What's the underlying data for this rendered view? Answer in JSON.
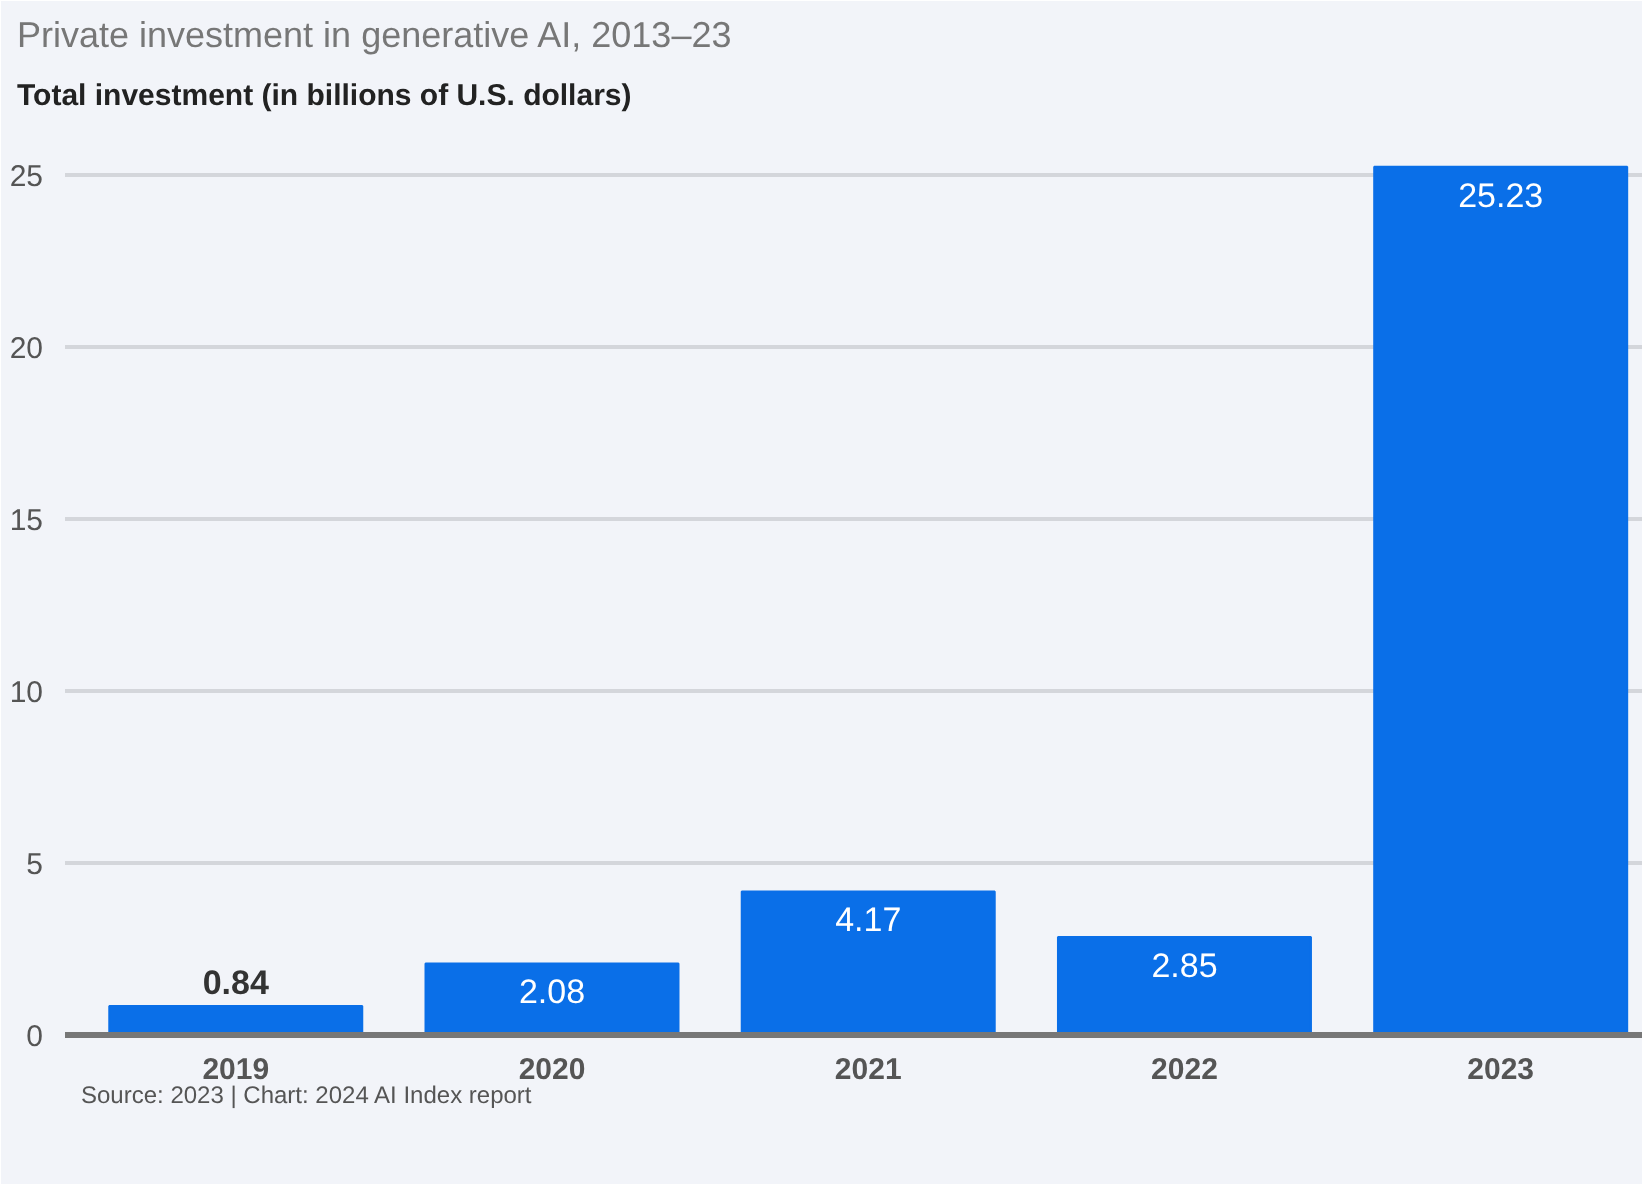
{
  "chart_data": {
    "type": "bar",
    "title": "Private investment in generative AI, 2013–23",
    "ylabel": "Total investment (in billions of U.S. dollars)",
    "categories": [
      "2019",
      "2020",
      "2021",
      "2022",
      "2023"
    ],
    "values": [
      0.84,
      2.08,
      4.17,
      2.85,
      25.23
    ],
    "color": "#0a6fe8",
    "ylim": [
      0,
      26.5
    ],
    "yticks": [
      0,
      5,
      10,
      15,
      20,
      25
    ],
    "grid": "y",
    "data_labels": true,
    "annotations": [
      "Source: 2023 | Chart: 2024 AI Index report"
    ]
  }
}
